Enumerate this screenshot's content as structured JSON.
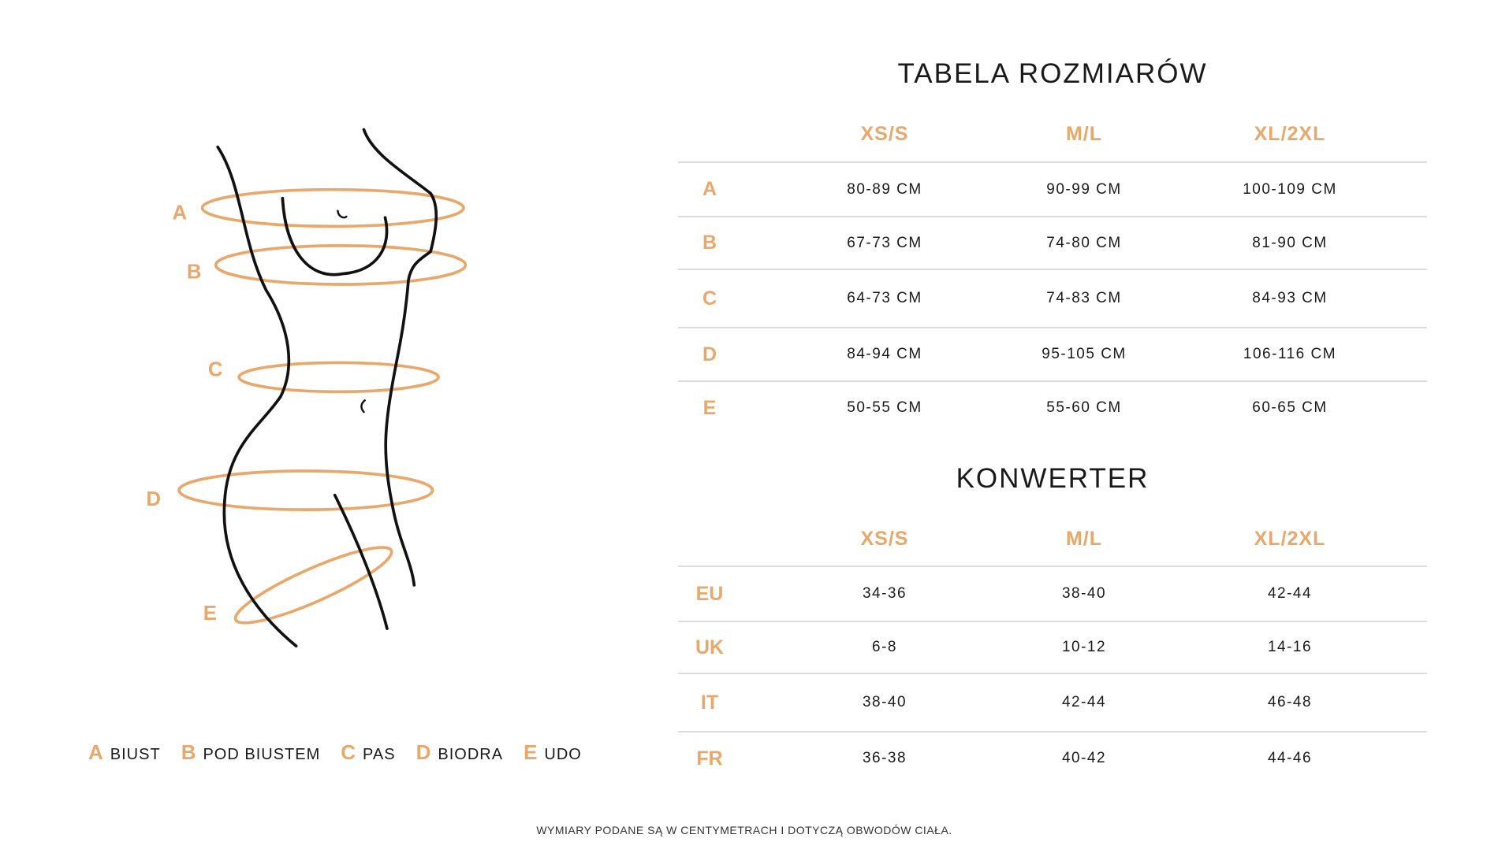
{
  "accent_color": "#E8A86C",
  "figure": {
    "labels": [
      "A",
      "B",
      "C",
      "D",
      "E"
    ]
  },
  "legend": [
    {
      "key": "A",
      "label": "BIUST"
    },
    {
      "key": "B",
      "label": "POD BIUSTEM"
    },
    {
      "key": "C",
      "label": "PAS"
    },
    {
      "key": "D",
      "label": "BIODRA"
    },
    {
      "key": "E",
      "label": "UDO"
    }
  ],
  "size_table": {
    "title": "TABELA ROZMIARÓW",
    "columns": [
      "XS/S",
      "M/L",
      "XL/2XL"
    ],
    "rows": [
      {
        "label": "A",
        "values": [
          "80-89 CM",
          "90-99 CM",
          "100-109 CM"
        ]
      },
      {
        "label": "B",
        "values": [
          "67-73 CM",
          "74-80 CM",
          "81-90 CM"
        ]
      },
      {
        "label": "C",
        "values": [
          "64-73 CM",
          "74-83 CM",
          "84-93 CM"
        ]
      },
      {
        "label": "D",
        "values": [
          "84-94 CM",
          "95-105 CM",
          "106-116 CM"
        ]
      },
      {
        "label": "E",
        "values": [
          "50-55 CM",
          "55-60 CM",
          "60-65 CM"
        ]
      }
    ]
  },
  "converter": {
    "title": "KONWERTER",
    "columns": [
      "XS/S",
      "M/L",
      "XL/2XL"
    ],
    "rows": [
      {
        "label": "EU",
        "values": [
          "34-36",
          "38-40",
          "42-44"
        ]
      },
      {
        "label": "UK",
        "values": [
          "6-8",
          "10-12",
          "14-16"
        ]
      },
      {
        "label": "IT",
        "values": [
          "38-40",
          "42-44",
          "46-48"
        ]
      },
      {
        "label": "FR",
        "values": [
          "36-38",
          "40-42",
          "44-46"
        ]
      }
    ]
  },
  "footer": "WYMIARY PODANE SĄ W CENTYMETRACH I DOTYCZĄ OBWODÓW CIAŁA."
}
